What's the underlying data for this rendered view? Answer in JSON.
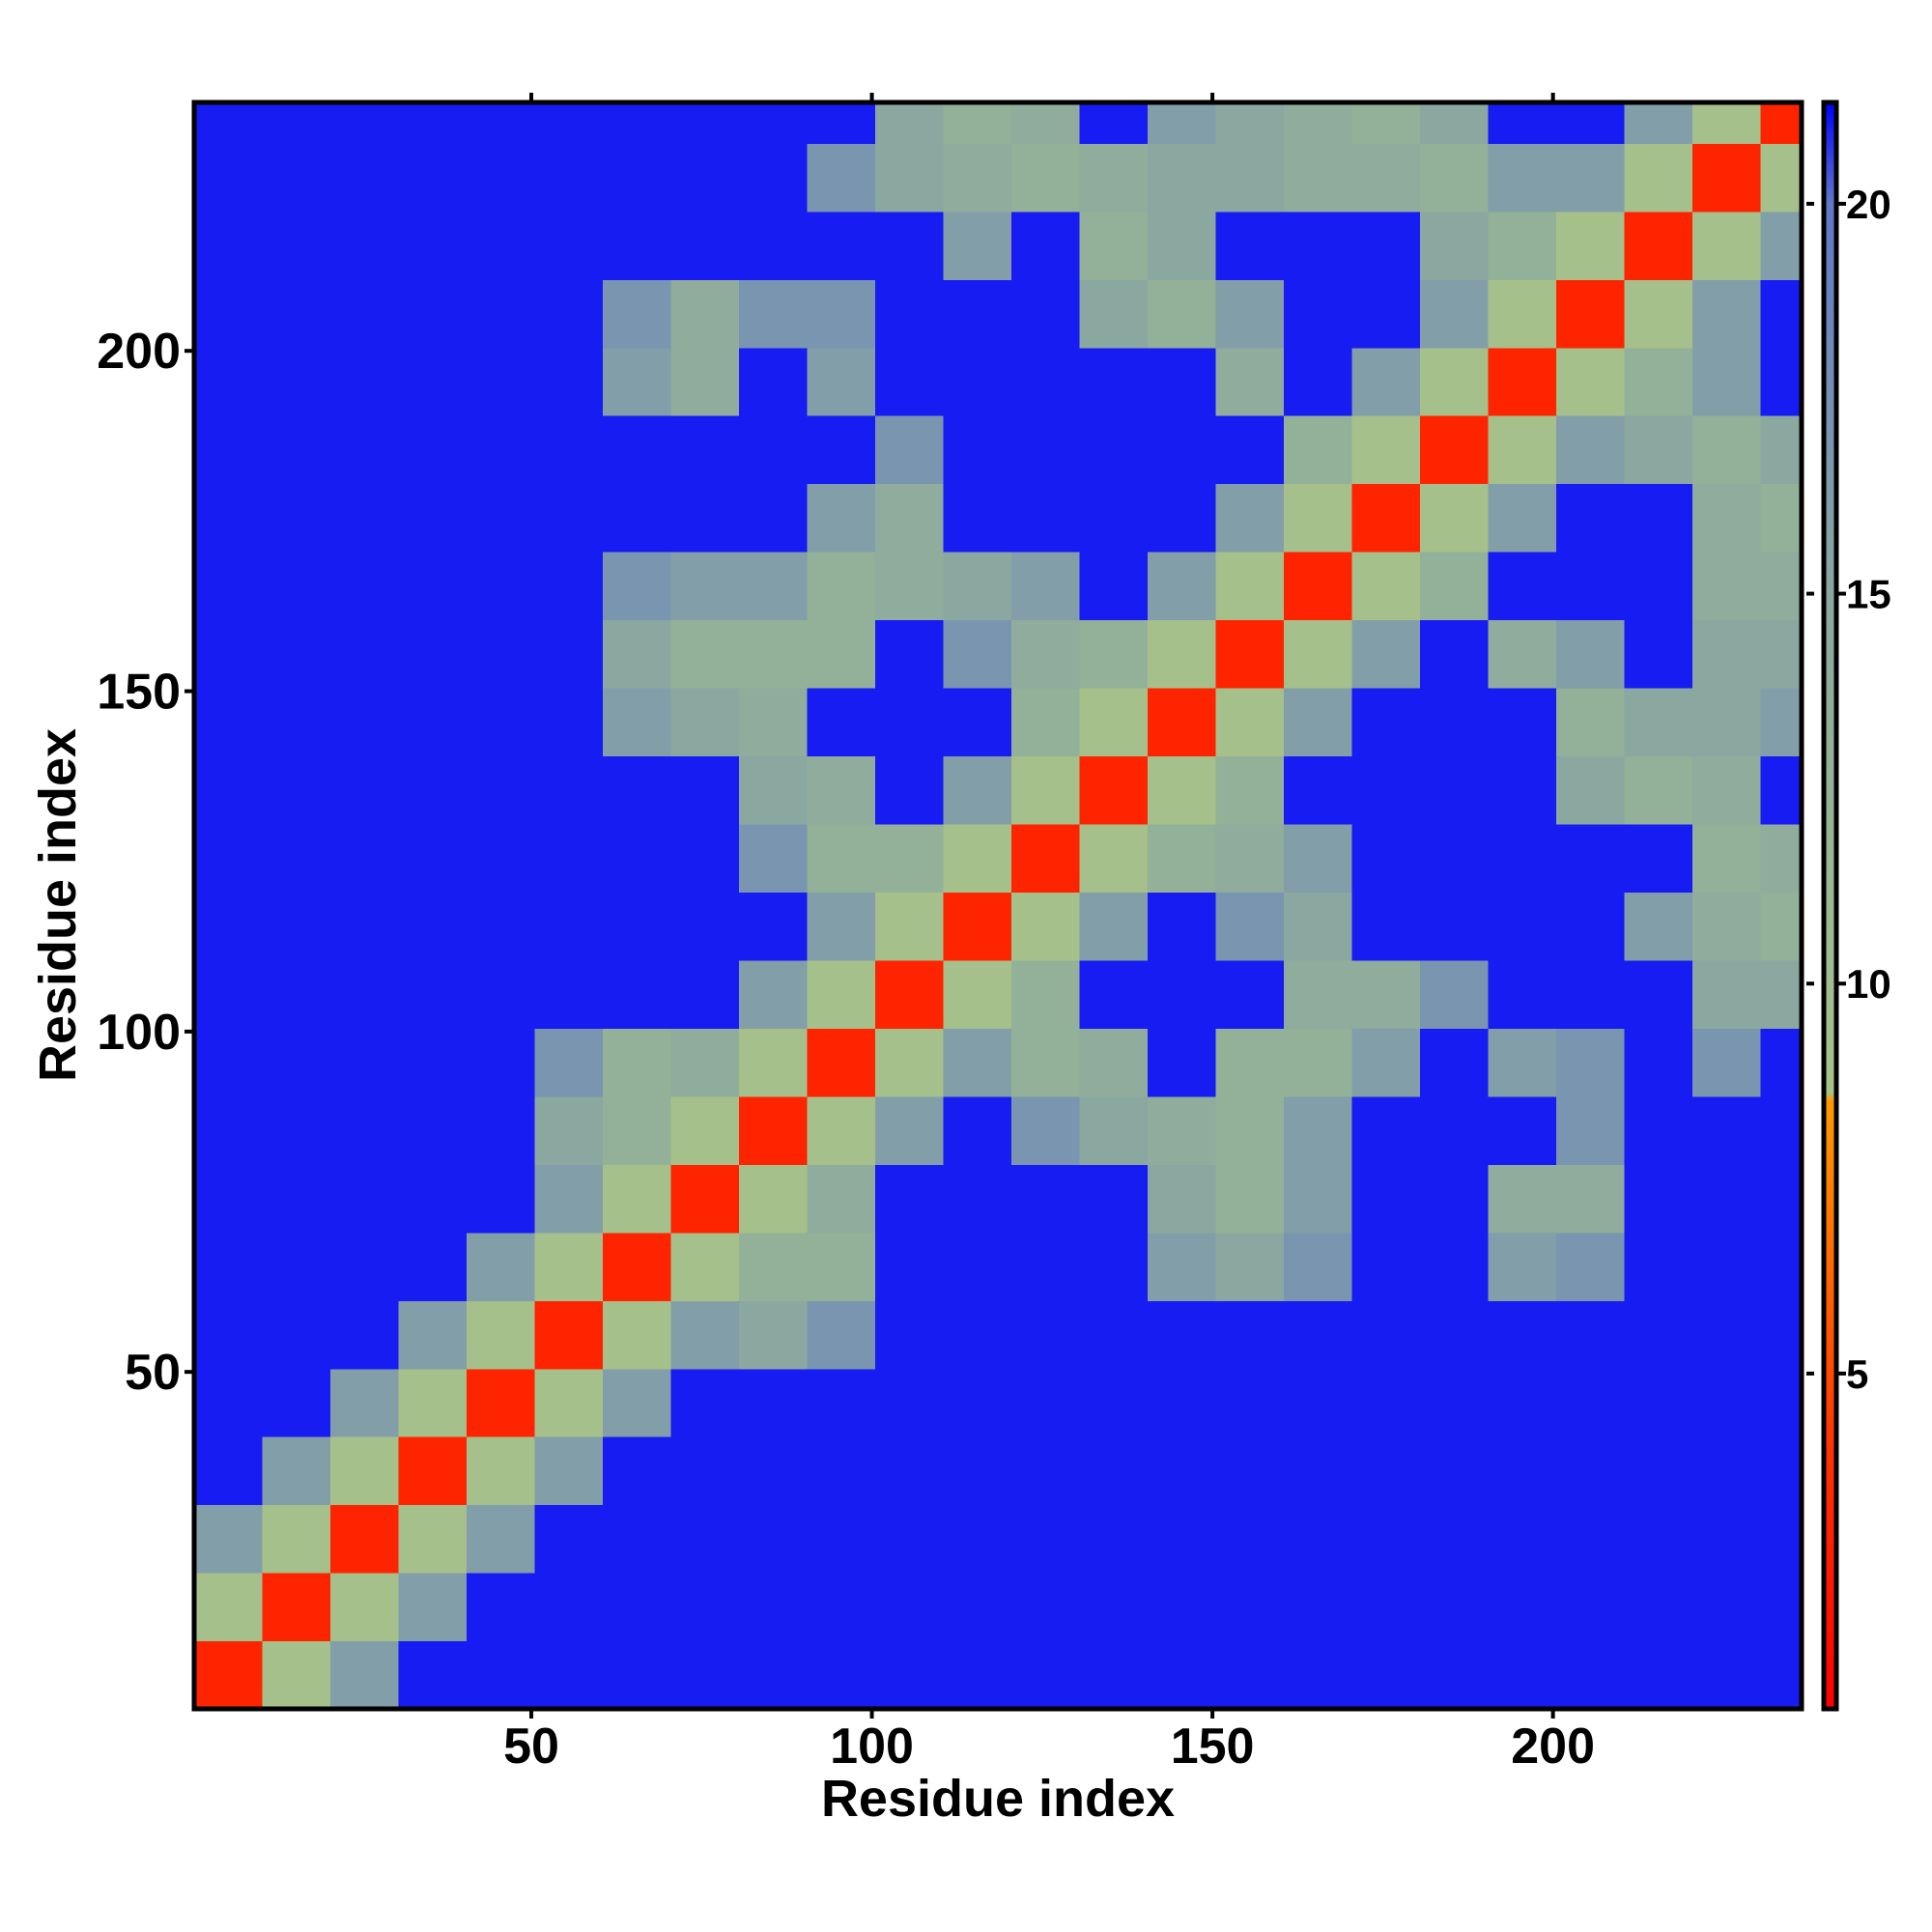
{
  "chart_data": {
    "type": "heatmap",
    "x_label": "Residue index",
    "y_label": "Residue index",
    "xlim": [
      0.5,
      236.5
    ],
    "ylim": [
      0.5,
      236.5
    ],
    "xticks": [
      50,
      100,
      150,
      200
    ],
    "yticks": [
      50,
      100,
      150,
      200
    ],
    "xbins": [
      0.5,
      10.5,
      20.5,
      30.5,
      40.5,
      50.5,
      60.5,
      70.5,
      80.5,
      90.5,
      100.5,
      110.5,
      120.5,
      130.5,
      140.5,
      150.5,
      160.5,
      170.5,
      180.5,
      190.5,
      200.5,
      210.5,
      220.5,
      230.5,
      236.5
    ],
    "ybins": [
      0.5,
      10.5,
      20.5,
      30.5,
      40.5,
      50.5,
      60.5,
      70.5,
      80.5,
      90.5,
      100.5,
      110.5,
      120.5,
      130.5,
      140.5,
      150.5,
      160.5,
      170.5,
      180.5,
      190.5,
      200.5,
      210.5,
      220.5,
      230.5,
      236.5
    ],
    "zlim": [
      0.7,
      21.3
    ],
    "zticks": [
      5,
      10,
      15,
      20
    ],
    "colorscale": [
      [
        0.7,
        "#ff0000"
      ],
      [
        4,
        "#ff3300"
      ],
      [
        8.5,
        "#ff9900"
      ],
      [
        8.6,
        "#a8c28a"
      ],
      [
        15,
        "#8aa8a0"
      ],
      [
        20,
        "#6078c8"
      ],
      [
        21.3,
        "#0000ff"
      ]
    ],
    "z": [
      [
        3,
        9,
        16,
        21,
        21,
        21,
        21,
        21,
        21,
        21,
        21,
        21,
        21,
        21,
        21,
        21,
        21,
        21,
        21,
        21,
        21,
        21,
        21,
        21
      ],
      [
        9,
        3,
        9,
        16,
        21,
        21,
        21,
        21,
        21,
        21,
        21,
        21,
        21,
        21,
        21,
        21,
        21,
        21,
        21,
        21,
        21,
        21,
        21,
        21
      ],
      [
        16,
        9,
        3,
        9,
        16,
        21,
        21,
        21,
        21,
        21,
        21,
        21,
        21,
        21,
        21,
        21,
        21,
        21,
        21,
        21,
        21,
        21,
        21,
        21
      ],
      [
        21,
        16,
        9,
        3,
        9,
        16,
        21,
        21,
        21,
        21,
        21,
        21,
        21,
        21,
        21,
        21,
        21,
        21,
        21,
        21,
        21,
        21,
        21,
        21
      ],
      [
        21,
        21,
        16,
        9,
        3,
        9,
        16,
        21,
        21,
        21,
        21,
        21,
        21,
        21,
        21,
        21,
        21,
        21,
        21,
        21,
        21,
        21,
        21,
        21
      ],
      [
        21,
        21,
        21,
        16,
        9,
        3,
        9,
        16,
        15,
        17,
        21,
        21,
        21,
        21,
        21,
        21,
        21,
        21,
        21,
        21,
        21,
        21,
        21,
        21
      ],
      [
        21,
        21,
        21,
        21,
        16,
        9,
        3,
        9,
        13,
        13,
        21,
        21,
        21,
        21,
        16,
        15,
        17,
        21,
        21,
        16,
        17,
        21,
        21,
        21
      ],
      [
        21,
        21,
        21,
        21,
        21,
        16,
        9,
        3,
        9,
        14,
        21,
        21,
        21,
        21,
        15,
        13,
        16,
        21,
        21,
        14,
        14,
        21,
        21,
        21
      ],
      [
        21,
        21,
        21,
        21,
        21,
        15,
        13,
        9,
        3,
        9,
        16,
        21,
        17,
        15,
        14,
        13,
        16,
        21,
        21,
        21,
        17,
        21,
        21,
        21
      ],
      [
        21,
        21,
        21,
        21,
        21,
        17,
        13,
        14,
        9,
        3,
        9,
        16,
        13,
        14,
        21,
        13,
        13,
        16,
        21,
        16,
        17,
        21,
        17,
        21
      ],
      [
        21,
        21,
        21,
        21,
        21,
        21,
        21,
        21,
        16,
        9,
        3,
        9,
        13,
        21,
        21,
        21,
        14,
        14,
        17,
        21,
        21,
        21,
        15,
        15
      ],
      [
        21,
        21,
        21,
        21,
        21,
        21,
        21,
        21,
        21,
        16,
        9,
        3,
        9,
        16,
        21,
        17,
        15,
        21,
        21,
        21,
        21,
        16,
        14,
        13
      ],
      [
        21,
        21,
        21,
        21,
        21,
        21,
        21,
        21,
        17,
        13,
        13,
        9,
        3,
        9,
        13,
        14,
        16,
        21,
        21,
        21,
        21,
        21,
        13,
        14
      ],
      [
        21,
        21,
        21,
        21,
        21,
        21,
        21,
        21,
        15,
        14,
        21,
        16,
        9,
        3,
        9,
        13,
        21,
        21,
        21,
        21,
        15,
        13,
        14,
        21
      ],
      [
        21,
        21,
        21,
        21,
        21,
        21,
        16,
        15,
        14,
        21,
        21,
        21,
        13,
        9,
        3,
        9,
        16,
        21,
        21,
        21,
        13,
        15,
        15,
        16
      ],
      [
        21,
        21,
        21,
        21,
        21,
        21,
        15,
        13,
        13,
        13,
        21,
        17,
        14,
        13,
        9,
        3,
        9,
        16,
        21,
        14,
        16,
        21,
        15,
        15
      ],
      [
        21,
        21,
        21,
        21,
        21,
        21,
        17,
        16,
        16,
        13,
        14,
        15,
        16,
        21,
        16,
        9,
        3,
        9,
        13,
        21,
        21,
        21,
        14,
        14
      ],
      [
        21,
        21,
        21,
        21,
        21,
        21,
        21,
        21,
        21,
        16,
        14,
        21,
        21,
        21,
        21,
        16,
        9,
        3,
        9,
        16,
        21,
        21,
        14,
        13
      ],
      [
        21,
        21,
        21,
        21,
        21,
        21,
        21,
        21,
        21,
        21,
        17,
        21,
        21,
        21,
        21,
        21,
        13,
        9,
        3,
        9,
        16,
        15,
        13,
        15
      ],
      [
        21,
        21,
        21,
        21,
        21,
        21,
        16,
        14,
        21,
        16,
        21,
        21,
        21,
        21,
        21,
        14,
        21,
        16,
        9,
        3,
        9,
        13,
        16,
        21
      ],
      [
        21,
        21,
        21,
        21,
        21,
        21,
        17,
        14,
        17,
        17,
        21,
        21,
        21,
        15,
        13,
        16,
        21,
        21,
        16,
        9,
        3,
        9,
        16,
        21
      ],
      [
        21,
        21,
        21,
        21,
        21,
        21,
        21,
        21,
        21,
        21,
        21,
        16,
        21,
        13,
        15,
        21,
        21,
        21,
        15,
        13,
        9,
        3,
        9,
        16
      ],
      [
        21,
        21,
        21,
        21,
        21,
        21,
        21,
        21,
        21,
        17,
        15,
        14,
        13,
        14,
        15,
        15,
        14,
        14,
        13,
        16,
        16,
        9,
        3,
        9
      ],
      [
        21,
        21,
        21,
        21,
        21,
        21,
        21,
        21,
        21,
        21,
        15,
        13,
        14,
        21,
        16,
        15,
        14,
        13,
        15,
        21,
        21,
        16,
        9,
        3
      ]
    ]
  }
}
